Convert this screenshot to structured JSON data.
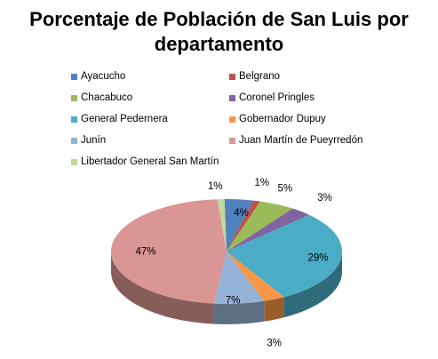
{
  "chart_data": {
    "type": "pie",
    "title": "Porcentaje de Población de San Luis por departamento",
    "title_lines": [
      "Porcentaje de Población de San Luis por",
      "departamento"
    ],
    "categories": [
      "Ayacucho",
      "Belgrano",
      "Chacabuco",
      "Coronel Pringles",
      "General Pedernera",
      "Gobernador Dupuy",
      "Junín",
      "Juan Martín de Pueyrredón",
      "Libertador General San Martín"
    ],
    "values": [
      4,
      1,
      5,
      3,
      29,
      3,
      7,
      47,
      1
    ],
    "data_labels": [
      "4%",
      "1%",
      "5%",
      "3%",
      "29%",
      "3%",
      "7%",
      "47%",
      "1%"
    ],
    "colors": [
      "#4F81BD",
      "#C0504D",
      "#9BBB59",
      "#8064A2",
      "#4BACC6",
      "#F79646",
      "#95B3D7",
      "#D99694",
      "#C3D69B"
    ],
    "legend_position": "top",
    "style": "3d"
  }
}
